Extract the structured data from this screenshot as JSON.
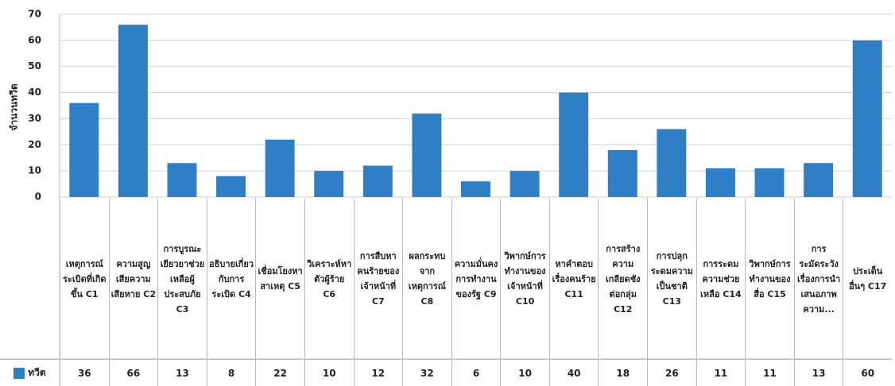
{
  "chart_data": {
    "type": "bar",
    "y_label": "จำนวนทวีต",
    "categories": [
      "เหตุการณ์ระเบิดที่เกิดขึ้น C1",
      "ความสูญเสียความเสียหาย C2",
      "การบูรณะเยียวยาช่วยเหลือผู้ประสบภัย C3",
      "อธิบายเกี่ยวกับการระเบิด C4",
      "เชื่อมโยงหาสาเหตุ C5",
      "วิเคราะห์หาตัวผู้ร้าย C6",
      "การสืบหาคนร้ายของเจ้าหน้าที่ C7",
      "ผลกระทบจากเหตุการณ์ C8",
      "ความมั่นคงการทำงานของรัฐ C9",
      "วิพากษ์การทำงานของเจ้าหน้าที่ C10",
      "หาคำตอบเรื่องคนร้าย C11",
      "การสร้างความเกลียดชังต่อกลุ่ม C12",
      "การปลุกระดมความเป็นชาติ C13",
      "การระดมความช่วยเหลือ C14",
      "วิพากษ์การทำงานของสื่อ C15",
      "การระมัดระวังเรื่องการนำเสนอภาพความ...",
      "ประเด็นอื่นๆ C17"
    ],
    "series": [
      {
        "name": "ทวีต",
        "color": "#2e7fc6",
        "values": [
          36,
          66,
          13,
          8,
          22,
          10,
          12,
          32,
          6,
          10,
          40,
          18,
          26,
          11,
          11,
          13,
          60
        ]
      }
    ],
    "ylim": [
      0,
      70
    ],
    "yticks": [
      0,
      10,
      20,
      30,
      40,
      50,
      60,
      70
    ],
    "grid": true
  }
}
